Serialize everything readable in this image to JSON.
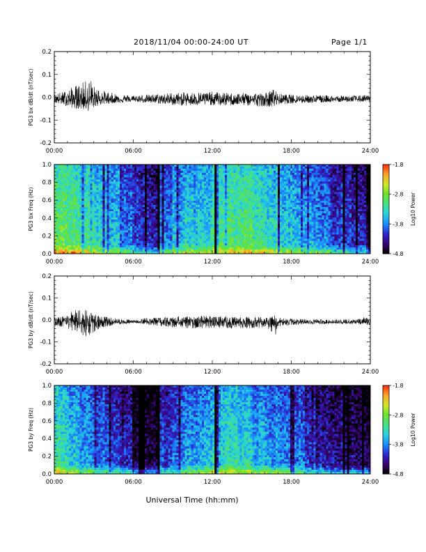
{
  "header": {
    "date_range": "2018/11/04  00:00-24:00 UT",
    "page": "Page 1/1"
  },
  "footer": {
    "xlabel": "Universal Time (hh:mm)"
  },
  "colors": {
    "trace": "#000000",
    "colormap": [
      "#000000",
      "#3a0073",
      "#2a2ad0",
      "#1a8cff",
      "#27d3dc",
      "#45e089",
      "#6de22c",
      "#cfe72a",
      "#fda428",
      "#ff2a10"
    ]
  },
  "chart_data": [
    {
      "type": "line",
      "panel": "bx-waveform",
      "ylabel": "PG3 bx dB/dt (nT/sec)",
      "ylim": [
        -0.2,
        0.2
      ],
      "yticks": [
        "0.2",
        "0.1",
        "0.0",
        "-0.1",
        "-0.2"
      ],
      "xlim": [
        0,
        24
      ],
      "xticks": [
        "00:00",
        "06:00",
        "12:00",
        "18:00",
        "24:00"
      ],
      "x_hours": [
        0,
        1,
        1.5,
        2,
        2.5,
        2.8,
        3,
        3.5,
        4,
        5,
        6,
        7,
        8,
        9,
        10,
        11,
        12,
        13,
        14,
        15,
        16,
        16.8,
        17,
        18,
        19,
        20,
        21,
        22,
        23,
        24
      ],
      "envelope_max": [
        0.015,
        0.03,
        0.05,
        0.06,
        0.075,
        0.08,
        0.05,
        0.035,
        0.025,
        0.012,
        0.01,
        0.012,
        0.015,
        0.02,
        0.022,
        0.022,
        0.025,
        0.02,
        0.018,
        0.02,
        0.018,
        0.04,
        0.015,
        0.012,
        0.01,
        0.01,
        0.008,
        0.008,
        0.008,
        0.01
      ],
      "envelope_min": [
        -0.025,
        -0.04,
        -0.05,
        -0.055,
        -0.06,
        -0.065,
        -0.045,
        -0.035,
        -0.03,
        -0.025,
        -0.02,
        -0.025,
        -0.03,
        -0.035,
        -0.038,
        -0.038,
        -0.035,
        -0.038,
        -0.035,
        -0.04,
        -0.04,
        -0.045,
        -0.032,
        -0.028,
        -0.025,
        -0.025,
        -0.022,
        -0.02,
        -0.02,
        -0.02
      ],
      "baseline": -0.01
    },
    {
      "type": "heatmap",
      "panel": "bx-spectrogram",
      "ylabel": "PG3 bx Freq (Hz)",
      "ylim": [
        0.0,
        1.0
      ],
      "yticks": [
        "1.0",
        "0.8",
        "0.6",
        "0.4",
        "0.2",
        "0.0"
      ],
      "xlim": [
        0,
        24
      ],
      "xticks": [
        "00:00",
        "06:00",
        "12:00",
        "18:00",
        "24:00"
      ],
      "colorbar_label": "Log10 Power",
      "colorbar_range": [
        -4.8,
        -1.8
      ],
      "colorbar_ticks": [
        "-1.8",
        "-2.8",
        "-3.8",
        "-4.8"
      ],
      "gap_hour": 12.25,
      "hour_level": [
        -2.9,
        -3.0,
        -3.1,
        -3.3,
        -3.5,
        -3.8,
        -4.0,
        -4.2,
        -3.8,
        -3.5,
        -3.4,
        -3.3,
        -3.1,
        -3.0,
        -3.0,
        -3.1,
        -3.3,
        -3.4,
        -3.5,
        -3.6,
        -3.8,
        -4.0,
        -4.1,
        -4.2
      ]
    },
    {
      "type": "line",
      "panel": "by-waveform",
      "ylabel": "PG3 by dB/dt (nT/sec)",
      "ylim": [
        -0.2,
        0.2
      ],
      "yticks": [
        "0.2",
        "0.1",
        "0.0",
        "-0.1",
        "-0.2"
      ],
      "xlim": [
        0,
        24
      ],
      "xticks": [
        "00:00",
        "06:00",
        "12:00",
        "18:00",
        "24:00"
      ],
      "x_hours": [
        0,
        1,
        1.5,
        2,
        2.5,
        3,
        3.5,
        4,
        5,
        6,
        7,
        8,
        9,
        10,
        11,
        12,
        13,
        14,
        15,
        16,
        16.8,
        17,
        18,
        19,
        20,
        21,
        22,
        23,
        23.9,
        24
      ],
      "envelope_max": [
        0.01,
        0.02,
        0.05,
        0.065,
        0.04,
        0.03,
        0.02,
        0.015,
        0.005,
        0.0,
        0.01,
        0.01,
        0.015,
        0.02,
        0.02,
        0.02,
        0.018,
        0.015,
        0.015,
        0.012,
        0.025,
        0.01,
        0.005,
        0.003,
        0.003,
        0.003,
        0.003,
        0.003,
        0.02,
        0.0
      ],
      "envelope_min": [
        -0.03,
        -0.045,
        -0.06,
        -0.07,
        -0.08,
        -0.06,
        -0.04,
        -0.03,
        -0.02,
        -0.015,
        -0.02,
        -0.03,
        -0.035,
        -0.04,
        -0.04,
        -0.04,
        -0.04,
        -0.04,
        -0.038,
        -0.035,
        -0.07,
        -0.03,
        -0.025,
        -0.02,
        -0.02,
        -0.018,
        -0.018,
        -0.02,
        -0.025,
        -0.01
      ],
      "baseline": -0.01
    },
    {
      "type": "heatmap",
      "panel": "by-spectrogram",
      "ylabel": "PG3 by Freq (Hz)",
      "ylim": [
        0.0,
        1.0
      ],
      "yticks": [
        "1.0",
        "0.8",
        "0.6",
        "0.4",
        "0.2",
        "0.0"
      ],
      "xlim": [
        0,
        24
      ],
      "xticks": [
        "00:00",
        "06:00",
        "12:00",
        "18:00",
        "24:00"
      ],
      "colorbar_label": "Log10 Power",
      "colorbar_range": [
        -4.8,
        -1.8
      ],
      "colorbar_ticks": [
        "-1.8",
        "-2.8",
        "-3.8",
        "-4.8"
      ],
      "gap_hour": 12.25,
      "hour_level": [
        -3.2,
        -3.4,
        -3.6,
        -3.8,
        -4.0,
        -4.2,
        -4.5,
        -4.6,
        -4.0,
        -3.8,
        -3.6,
        -3.5,
        -3.3,
        -3.2,
        -3.3,
        -3.5,
        -3.6,
        -3.7,
        -3.8,
        -4.0,
        -4.2,
        -4.3,
        -4.4,
        -4.5
      ]
    }
  ]
}
